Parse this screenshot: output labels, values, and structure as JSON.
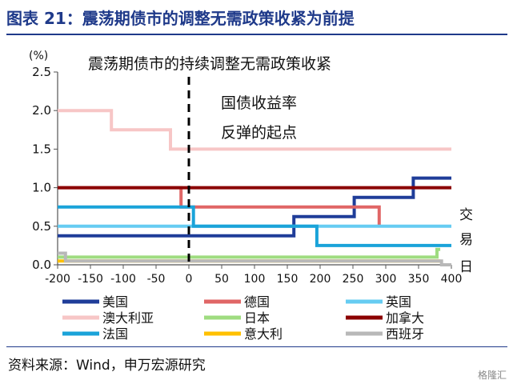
{
  "figure": {
    "title": "图表 21：震荡期债市的调整无需政策收紧为前提",
    "source": "资料来源：Wind，申万宏源研究",
    "watermark": "格隆汇"
  },
  "colors": {
    "title": "#1f3a8a",
    "axis": "#555555",
    "us": "#1f3d99",
    "de": "#e06666",
    "uk": "#66ccf2",
    "au": "#f7c6c6",
    "jp": "#9fdc80",
    "ca": "#8b0000",
    "fr": "#1aa3d9",
    "it": "#ffc000",
    "es": "#b8b8b8"
  },
  "chart_data": {
    "type": "line",
    "title": "震荡期债市的持续调整无需政策收紧",
    "ylabel": "(%)",
    "xlabel": "",
    "xlim": [
      -200,
      400
    ],
    "ylim": [
      0,
      2.5
    ],
    "xticks": [
      -200,
      -150,
      -100,
      -50,
      0,
      50,
      100,
      150,
      200,
      250,
      300,
      350,
      400
    ],
    "yticks": [
      0.0,
      0.5,
      1.0,
      1.5,
      2.0,
      2.5
    ],
    "ytick_labels": [
      "0.0",
      "0.5",
      "1.0",
      "1.5",
      "2.0",
      "2.5"
    ],
    "grid": false,
    "legend_position": "bottom",
    "vline_x": 0,
    "annotations": [
      "国债收益率",
      "反弹的起点"
    ],
    "right_labels": [
      "交",
      "易",
      "日"
    ],
    "series": [
      {
        "name": "美国",
        "key": "us",
        "step": true,
        "x": [
          -200,
          160,
          160,
          252,
          252,
          342,
          342,
          400
        ],
        "y": [
          0.375,
          0.375,
          0.625,
          0.625,
          0.875,
          0.875,
          1.125,
          1.125
        ]
      },
      {
        "name": "德国",
        "key": "de",
        "step": true,
        "x": [
          -200,
          -12,
          -12,
          290,
          290
        ],
        "y": [
          1.0,
          1.0,
          0.75,
          0.75,
          0.5
        ]
      },
      {
        "name": "英国",
        "key": "uk",
        "step": true,
        "x": [
          -200,
          400
        ],
        "y": [
          0.5,
          0.5
        ]
      },
      {
        "name": "澳大利亚",
        "key": "au",
        "step": true,
        "x": [
          -200,
          -118,
          -118,
          -28,
          -28,
          400
        ],
        "y": [
          2.0,
          2.0,
          1.75,
          1.75,
          1.5,
          1.5
        ]
      },
      {
        "name": "日本",
        "key": "jp",
        "step": true,
        "x": [
          -200,
          378,
          378,
          383
        ],
        "y": [
          0.1,
          0.1,
          0.2,
          0.2
        ]
      },
      {
        "name": "加拿大",
        "key": "ca",
        "step": true,
        "x": [
          -200,
          400
        ],
        "y": [
          1.0,
          1.0
        ]
      },
      {
        "name": "法国",
        "key": "fr",
        "step": true,
        "x": [
          -200,
          7,
          7,
          195,
          195,
          400
        ],
        "y": [
          0.75,
          0.75,
          0.5,
          0.5,
          0.25,
          0.25
        ]
      },
      {
        "name": "意大利",
        "key": "it",
        "step": true,
        "x": [
          -200,
          383
        ],
        "y": [
          0.05,
          0.05
        ]
      },
      {
        "name": "西班牙",
        "key": "es",
        "step": true,
        "x": [
          -200,
          -188,
          -188,
          385,
          385,
          400
        ],
        "y": [
          0.15,
          0.15,
          0.05,
          0.05,
          0.0,
          0.0
        ]
      }
    ]
  }
}
